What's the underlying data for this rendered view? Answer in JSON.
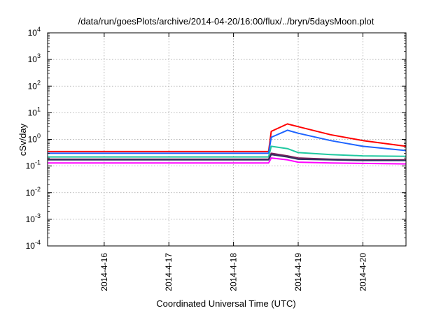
{
  "chart_data": {
    "type": "line",
    "title": "/data/run/goesPlots/archive/2014-04-20/16:00/flux/../bryn/5daysMoon.plot",
    "xlabel": "Coordinated Universal Time (UTC)",
    "ylabel": "cSv/day",
    "yscale": "log",
    "ylim": [
      0.0001,
      10000
    ],
    "xlim": [
      "2014-04-15T03:00",
      "2014-04-20T16:00"
    ],
    "grid": true,
    "legend": "none",
    "x_ticks": [
      "2014-4-16",
      "2014-4-17",
      "2014-4-18",
      "2014-4-19",
      "2014-4-20"
    ],
    "y_ticks": [
      {
        "base": "10",
        "exp": "-4"
      },
      {
        "base": "10",
        "exp": "-3"
      },
      {
        "base": "10",
        "exp": "-2"
      },
      {
        "base": "10",
        "exp": "-1"
      },
      {
        "base": "10",
        "exp": "0"
      },
      {
        "base": "10",
        "exp": "1"
      },
      {
        "base": "10",
        "exp": "2"
      },
      {
        "base": "10",
        "exp": "3"
      },
      {
        "base": "10",
        "exp": "4"
      }
    ],
    "series": [
      {
        "color": "#ff0000",
        "x": [
          "2014-04-15T03:00",
          "2014-04-16T00:00",
          "2014-04-17T00:00",
          "2014-04-18T00:00",
          "2014-04-18T13:00",
          "2014-04-18T14:00",
          "2014-04-18T20:00",
          "2014-04-19T00:00",
          "2014-04-19T12:00",
          "2014-04-20T00:00",
          "2014-04-20T16:00"
        ],
        "y": [
          0.35,
          0.35,
          0.35,
          0.35,
          0.35,
          2.0,
          3.8,
          3.0,
          1.5,
          0.9,
          0.55
        ]
      },
      {
        "color": "#1e64ff",
        "x": [
          "2014-04-15T03:00",
          "2014-04-16T00:00",
          "2014-04-17T00:00",
          "2014-04-18T00:00",
          "2014-04-18T13:00",
          "2014-04-18T14:00",
          "2014-04-18T20:00",
          "2014-04-19T00:00",
          "2014-04-19T12:00",
          "2014-04-20T00:00",
          "2014-04-20T16:00"
        ],
        "y": [
          0.3,
          0.3,
          0.3,
          0.3,
          0.3,
          1.2,
          2.2,
          1.7,
          0.9,
          0.55,
          0.38
        ]
      },
      {
        "color": "#20c8a0",
        "x": [
          "2014-04-15T03:00",
          "2014-04-16T00:00",
          "2014-04-17T00:00",
          "2014-04-18T00:00",
          "2014-04-18T13:00",
          "2014-04-18T14:00",
          "2014-04-18T20:00",
          "2014-04-19T00:00",
          "2014-04-19T12:00",
          "2014-04-20T00:00",
          "2014-04-20T16:00"
        ],
        "y": [
          0.22,
          0.22,
          0.22,
          0.22,
          0.22,
          0.55,
          0.45,
          0.32,
          0.27,
          0.24,
          0.23
        ]
      },
      {
        "color": "#7a1e5a",
        "x": [
          "2014-04-15T03:00",
          "2014-04-16T00:00",
          "2014-04-17T00:00",
          "2014-04-18T00:00",
          "2014-04-18T13:00",
          "2014-04-18T14:00",
          "2014-04-18T20:00",
          "2014-04-19T00:00",
          "2014-04-19T12:00",
          "2014-04-20T00:00",
          "2014-04-20T16:00"
        ],
        "y": [
          0.18,
          0.18,
          0.18,
          0.18,
          0.18,
          0.3,
          0.24,
          0.2,
          0.18,
          0.17,
          0.17
        ]
      },
      {
        "color": "#303060",
        "x": [
          "2014-04-15T03:00",
          "2014-04-16T00:00",
          "2014-04-17T00:00",
          "2014-04-18T00:00",
          "2014-04-18T13:00",
          "2014-04-18T14:00",
          "2014-04-18T20:00",
          "2014-04-19T00:00",
          "2014-04-19T12:00",
          "2014-04-20T00:00",
          "2014-04-20T16:00"
        ],
        "y": [
          0.17,
          0.17,
          0.17,
          0.17,
          0.17,
          0.27,
          0.22,
          0.18,
          0.17,
          0.16,
          0.16
        ]
      },
      {
        "color": "#ff00ff",
        "x": [
          "2014-04-15T03:00",
          "2014-04-16T00:00",
          "2014-04-17T00:00",
          "2014-04-18T00:00",
          "2014-04-18T13:00",
          "2014-04-18T14:00",
          "2014-04-18T20:00",
          "2014-04-19T00:00",
          "2014-04-19T12:00",
          "2014-04-20T00:00",
          "2014-04-20T16:00"
        ],
        "y": [
          0.13,
          0.13,
          0.13,
          0.13,
          0.13,
          0.2,
          0.17,
          0.14,
          0.13,
          0.125,
          0.12
        ]
      }
    ]
  }
}
